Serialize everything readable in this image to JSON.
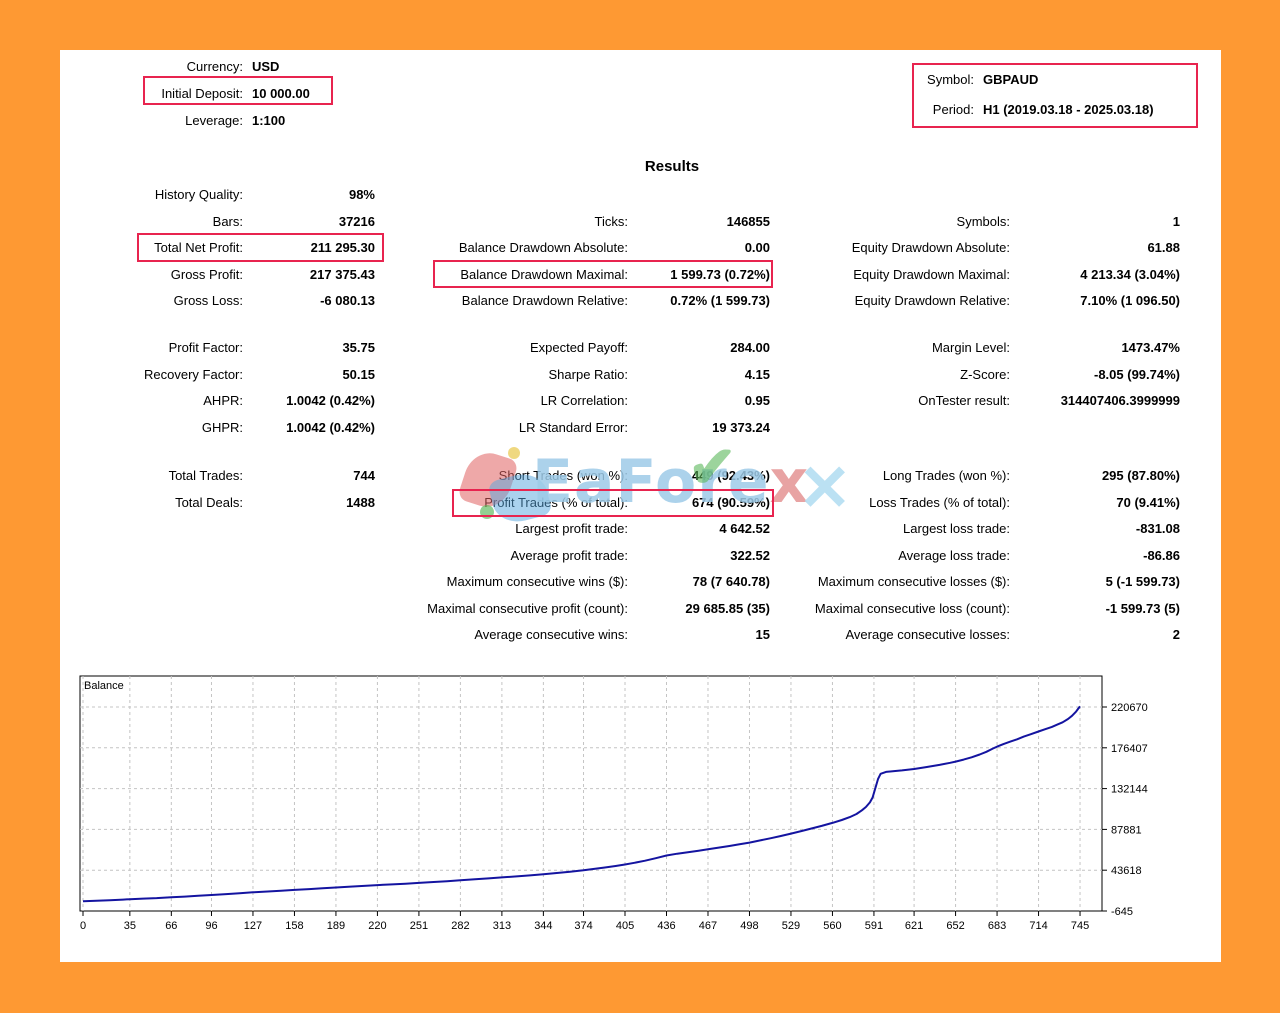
{
  "results_title": "Results",
  "header": {
    "left": [
      {
        "label": "Currency:",
        "value": "USD"
      },
      {
        "label": "Initial Deposit:",
        "value": "10 000.00"
      },
      {
        "label": "Leverage:",
        "value": "1:100"
      }
    ],
    "right": [
      {
        "label": "Symbol:",
        "value": "GBPAUD"
      },
      {
        "label": "Period:",
        "value": "H1 (2019.03.18 - 2025.03.18)"
      }
    ]
  },
  "stats_blocks": [
    {
      "rows": [
        [
          {
            "l": "History Quality:",
            "v": "98%"
          },
          null,
          null
        ],
        [
          {
            "l": "Bars:",
            "v": "37216"
          },
          {
            "l": "Ticks:",
            "v": "146855"
          },
          {
            "l": "Symbols:",
            "v": "1"
          }
        ],
        [
          {
            "l": "Total Net Profit:",
            "v": "211 295.30"
          },
          {
            "l": "Balance Drawdown Absolute:",
            "v": "0.00"
          },
          {
            "l": "Equity Drawdown Absolute:",
            "v": "61.88"
          }
        ],
        [
          {
            "l": "Gross Profit:",
            "v": "217 375.43"
          },
          {
            "l": "Balance Drawdown Maximal:",
            "v": "1 599.73 (0.72%)"
          },
          {
            "l": "Equity Drawdown Maximal:",
            "v": "4 213.34 (3.04%)"
          }
        ],
        [
          {
            "l": "Gross Loss:",
            "v": "-6 080.13"
          },
          {
            "l": "Balance Drawdown Relative:",
            "v": "0.72% (1 599.73)"
          },
          {
            "l": "Equity Drawdown Relative:",
            "v": "7.10% (1 096.50)"
          }
        ]
      ]
    },
    {
      "rows": [
        [
          {
            "l": "Profit Factor:",
            "v": "35.75"
          },
          {
            "l": "Expected Payoff:",
            "v": "284.00"
          },
          {
            "l": "Margin Level:",
            "v": "1473.47%"
          }
        ],
        [
          {
            "l": "Recovery Factor:",
            "v": "50.15"
          },
          {
            "l": "Sharpe Ratio:",
            "v": "4.15"
          },
          {
            "l": "Z-Score:",
            "v": "-8.05 (99.74%)"
          }
        ],
        [
          {
            "l": "AHPR:",
            "v": "1.0042 (0.42%)"
          },
          {
            "l": "LR Correlation:",
            "v": "0.95"
          },
          {
            "l": "OnTester result:",
            "v": "314407406.3999999"
          }
        ],
        [
          {
            "l": "GHPR:",
            "v": "1.0042 (0.42%)"
          },
          {
            "l": "LR Standard Error:",
            "v": "19 373.24"
          },
          null
        ]
      ]
    },
    {
      "rows": [
        [
          {
            "l": "Total Trades:",
            "v": "744"
          },
          {
            "l": "Short Trades (won %):",
            "v": "449 (92.43%)"
          },
          {
            "l": "Long Trades (won %):",
            "v": "295 (87.80%)"
          }
        ],
        [
          {
            "l": "Total Deals:",
            "v": "1488"
          },
          {
            "l": "Profit Trades (% of total):",
            "v": "674 (90.59%)"
          },
          {
            "l": "Loss Trades (% of total):",
            "v": "70 (9.41%)"
          }
        ],
        [
          null,
          {
            "l": "Largest profit trade:",
            "v": "4 642.52"
          },
          {
            "l": "Largest loss trade:",
            "v": "-831.08"
          }
        ],
        [
          null,
          {
            "l": "Average profit trade:",
            "v": "322.52"
          },
          {
            "l": "Average loss trade:",
            "v": "-86.86"
          }
        ],
        [
          null,
          {
            "l": "Maximum consecutive wins ($):",
            "v": "78 (7 640.78)"
          },
          {
            "l": "Maximum consecutive losses ($):",
            "v": "5 (-1 599.73)"
          }
        ],
        [
          null,
          {
            "l": "Maximal consecutive profit (count):",
            "v": "29 685.85 (35)"
          },
          {
            "l": "Maximal consecutive loss (count):",
            "v": "-1 599.73 (5)"
          }
        ],
        [
          null,
          {
            "l": "Average consecutive wins:",
            "v": "15"
          },
          {
            "l": "Average consecutive losses:",
            "v": "2"
          }
        ]
      ]
    }
  ],
  "highlighted_fields": [
    "Initial Deposit",
    "Symbol/Period",
    "Total Net Profit",
    "Balance Drawdown Maximal",
    "Profit Trades (% of total)"
  ],
  "colors": {
    "page_border": "#fe9933",
    "highlight_box": "#e8244f",
    "balance_line": "#1414a0",
    "grid_line": "#c4c4c4"
  },
  "watermark": {
    "text": "EaForex"
  },
  "chart_data": {
    "type": "line",
    "title": "Balance",
    "xlabel": "",
    "ylabel": "",
    "xlim": [
      0,
      761
    ],
    "ylim": [
      -645,
      254300
    ],
    "grid": true,
    "legend_position": "none",
    "x_ticks": [
      0,
      35,
      66,
      96,
      127,
      158,
      189,
      220,
      251,
      282,
      313,
      344,
      374,
      405,
      436,
      467,
      498,
      529,
      560,
      591,
      621,
      652,
      683,
      714,
      745
    ],
    "y_ticks": [
      220670,
      176407,
      132144,
      87881,
      43618,
      -645
    ],
    "series": [
      {
        "name": "Balance",
        "color": "#1414a0",
        "points": [
          [
            0,
            10000
          ],
          [
            10,
            10400
          ],
          [
            20,
            11000
          ],
          [
            30,
            11700
          ],
          [
            35,
            12200
          ],
          [
            45,
            12800
          ],
          [
            55,
            13400
          ],
          [
            66,
            14300
          ],
          [
            76,
            15000
          ],
          [
            86,
            15800
          ],
          [
            96,
            16700
          ],
          [
            107,
            17700
          ],
          [
            117,
            18600
          ],
          [
            127,
            19600
          ],
          [
            138,
            20500
          ],
          [
            148,
            21300
          ],
          [
            158,
            22200
          ],
          [
            169,
            23100
          ],
          [
            179,
            24000
          ],
          [
            189,
            24900
          ],
          [
            200,
            25800
          ],
          [
            210,
            26600
          ],
          [
            220,
            27400
          ],
          [
            231,
            28200
          ],
          [
            241,
            29000
          ],
          [
            251,
            29800
          ],
          [
            262,
            30800
          ],
          [
            272,
            31700
          ],
          [
            282,
            32700
          ],
          [
            293,
            33700
          ],
          [
            303,
            34700
          ],
          [
            313,
            35800
          ],
          [
            324,
            36900
          ],
          [
            334,
            38000
          ],
          [
            344,
            39200
          ],
          [
            354,
            40600
          ],
          [
            364,
            42000
          ],
          [
            374,
            43500
          ],
          [
            382,
            45000
          ],
          [
            390,
            46500
          ],
          [
            398,
            48200
          ],
          [
            405,
            49800
          ],
          [
            412,
            51600
          ],
          [
            420,
            53900
          ],
          [
            428,
            56600
          ],
          [
            436,
            59600
          ],
          [
            444,
            61500
          ],
          [
            452,
            63200
          ],
          [
            460,
            64800
          ],
          [
            467,
            66300
          ],
          [
            475,
            68100
          ],
          [
            483,
            69900
          ],
          [
            490,
            71600
          ],
          [
            498,
            73600
          ],
          [
            506,
            75900
          ],
          [
            514,
            78300
          ],
          [
            521,
            80600
          ],
          [
            529,
            83300
          ],
          [
            537,
            86100
          ],
          [
            544,
            88700
          ],
          [
            552,
            91700
          ],
          [
            560,
            94900
          ],
          [
            567,
            98100
          ],
          [
            573,
            101200
          ],
          [
            578,
            104600
          ],
          [
            582,
            108600
          ],
          [
            585,
            112200
          ],
          [
            588,
            117200
          ],
          [
            590,
            122500
          ],
          [
            592,
            132500
          ],
          [
            594,
            142500
          ],
          [
            596,
            148200
          ],
          [
            600,
            150300
          ],
          [
            606,
            151100
          ],
          [
            612,
            151900
          ],
          [
            621,
            153400
          ],
          [
            630,
            155500
          ],
          [
            640,
            157900
          ],
          [
            648,
            160100
          ],
          [
            652,
            161400
          ],
          [
            658,
            163600
          ],
          [
            664,
            166100
          ],
          [
            670,
            169100
          ],
          [
            675,
            172100
          ],
          [
            680,
            175600
          ],
          [
            684,
            178300
          ],
          [
            688,
            180600
          ],
          [
            693,
            183100
          ],
          [
            698,
            185600
          ],
          [
            703,
            188600
          ],
          [
            708,
            191100
          ],
          [
            714,
            194100
          ],
          [
            719,
            196600
          ],
          [
            724,
            199100
          ],
          [
            728,
            201600
          ],
          [
            732,
            204100
          ],
          [
            736,
            207600
          ],
          [
            739,
            211100
          ],
          [
            742,
            215600
          ],
          [
            744,
            219600
          ],
          [
            745,
            221295
          ]
        ]
      }
    ]
  }
}
